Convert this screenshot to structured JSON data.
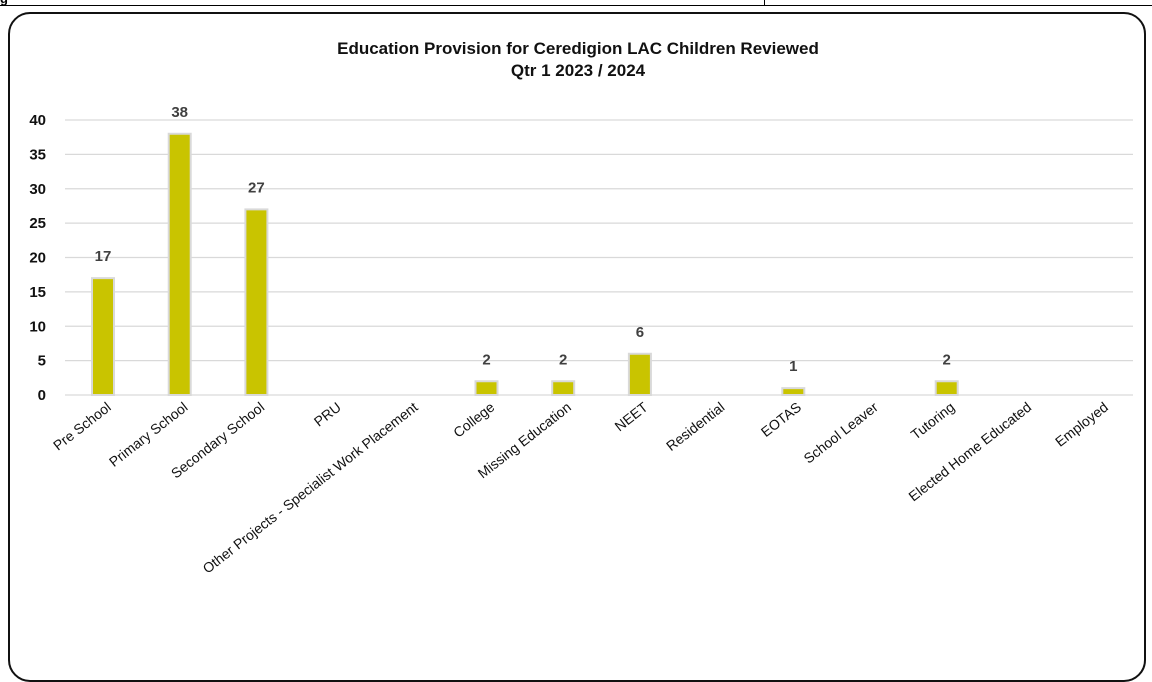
{
  "header": {
    "corner_text": "g"
  },
  "chart_data": {
    "type": "bar",
    "title_line1": "Education Provision for Ceredigion LAC Children Reviewed",
    "title_line2": "Qtr 1 2023 / 2024",
    "xlabel": "",
    "ylabel": "",
    "ylim": [
      0,
      40
    ],
    "yticks": [
      0,
      5,
      10,
      15,
      20,
      25,
      30,
      35,
      40
    ],
    "grid": true,
    "categories": [
      "Pre School",
      "Primary School",
      "Secondary School",
      "PRU",
      "Other Projects - Specialist Work Placement",
      "College",
      "Missing Education",
      "NEET",
      "Residential",
      "EOTAS",
      "School Leaver",
      "Tutoring",
      "Elected Home Educated",
      "Employed"
    ],
    "values": [
      17,
      38,
      27,
      null,
      null,
      2,
      2,
      6,
      null,
      1,
      null,
      2,
      null,
      null
    ],
    "data_labels": [
      "17",
      "38",
      "27",
      "",
      "",
      "2",
      "2",
      "6",
      "",
      "1",
      "",
      "2",
      "",
      ""
    ],
    "bar_color": "#c9c400",
    "bar_outline": "#d9d9d9",
    "grid_color": "#d9d9d9"
  }
}
